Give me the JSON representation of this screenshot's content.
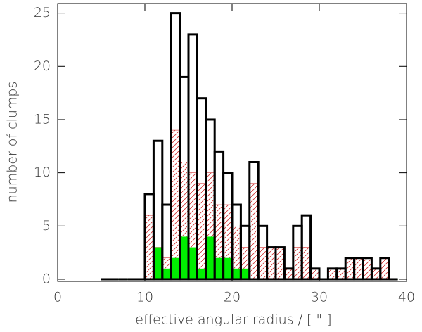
{
  "chart_data": {
    "type": "histogram",
    "xlabel": "effective angular radius / [ \" ]",
    "ylabel": "number of clumps",
    "bins": [
      5,
      6,
      7,
      8,
      9,
      10,
      11,
      12,
      13,
      14,
      15,
      16,
      17,
      18,
      19,
      20,
      21,
      22,
      23,
      24,
      25,
      26,
      27,
      28,
      29,
      30,
      31,
      32,
      33,
      34,
      35,
      36,
      37,
      38,
      39
    ],
    "series": [
      {
        "color": "#d03030",
        "style": "hatch",
        "values": [
          0,
          0,
          0,
          0,
          0,
          6,
          3,
          2,
          14,
          11,
          10,
          9,
          10,
          7,
          7,
          5,
          3,
          9,
          3,
          3,
          3,
          1,
          3,
          3,
          1,
          0,
          1,
          1,
          2,
          2,
          2,
          1,
          2,
          0
        ]
      },
      {
        "color": "#00ee00",
        "style": "fill",
        "values": [
          0,
          0,
          0,
          0,
          0,
          0,
          3,
          1,
          2,
          4,
          3,
          1,
          4,
          2,
          2,
          1,
          1,
          0,
          0,
          0,
          0,
          0,
          0,
          0,
          0,
          0,
          0,
          0,
          0,
          0,
          0,
          0,
          0,
          0
        ]
      },
      {
        "color": "#000000",
        "style": "outline",
        "values": [
          0,
          0,
          0,
          0,
          0,
          8,
          13,
          7,
          25,
          19,
          23,
          17,
          15,
          12,
          10,
          7,
          5,
          11,
          5,
          3,
          3,
          1,
          5,
          6,
          1,
          0,
          1,
          1,
          2,
          2,
          2,
          1,
          2,
          0
        ]
      }
    ],
    "xlim": [
      0,
      40
    ],
    "ylim": [
      -0.2,
      25.9
    ],
    "xticks": [
      0,
      10,
      20,
      30,
      40
    ],
    "yticks": [
      0,
      5,
      10,
      15,
      20,
      25
    ]
  }
}
